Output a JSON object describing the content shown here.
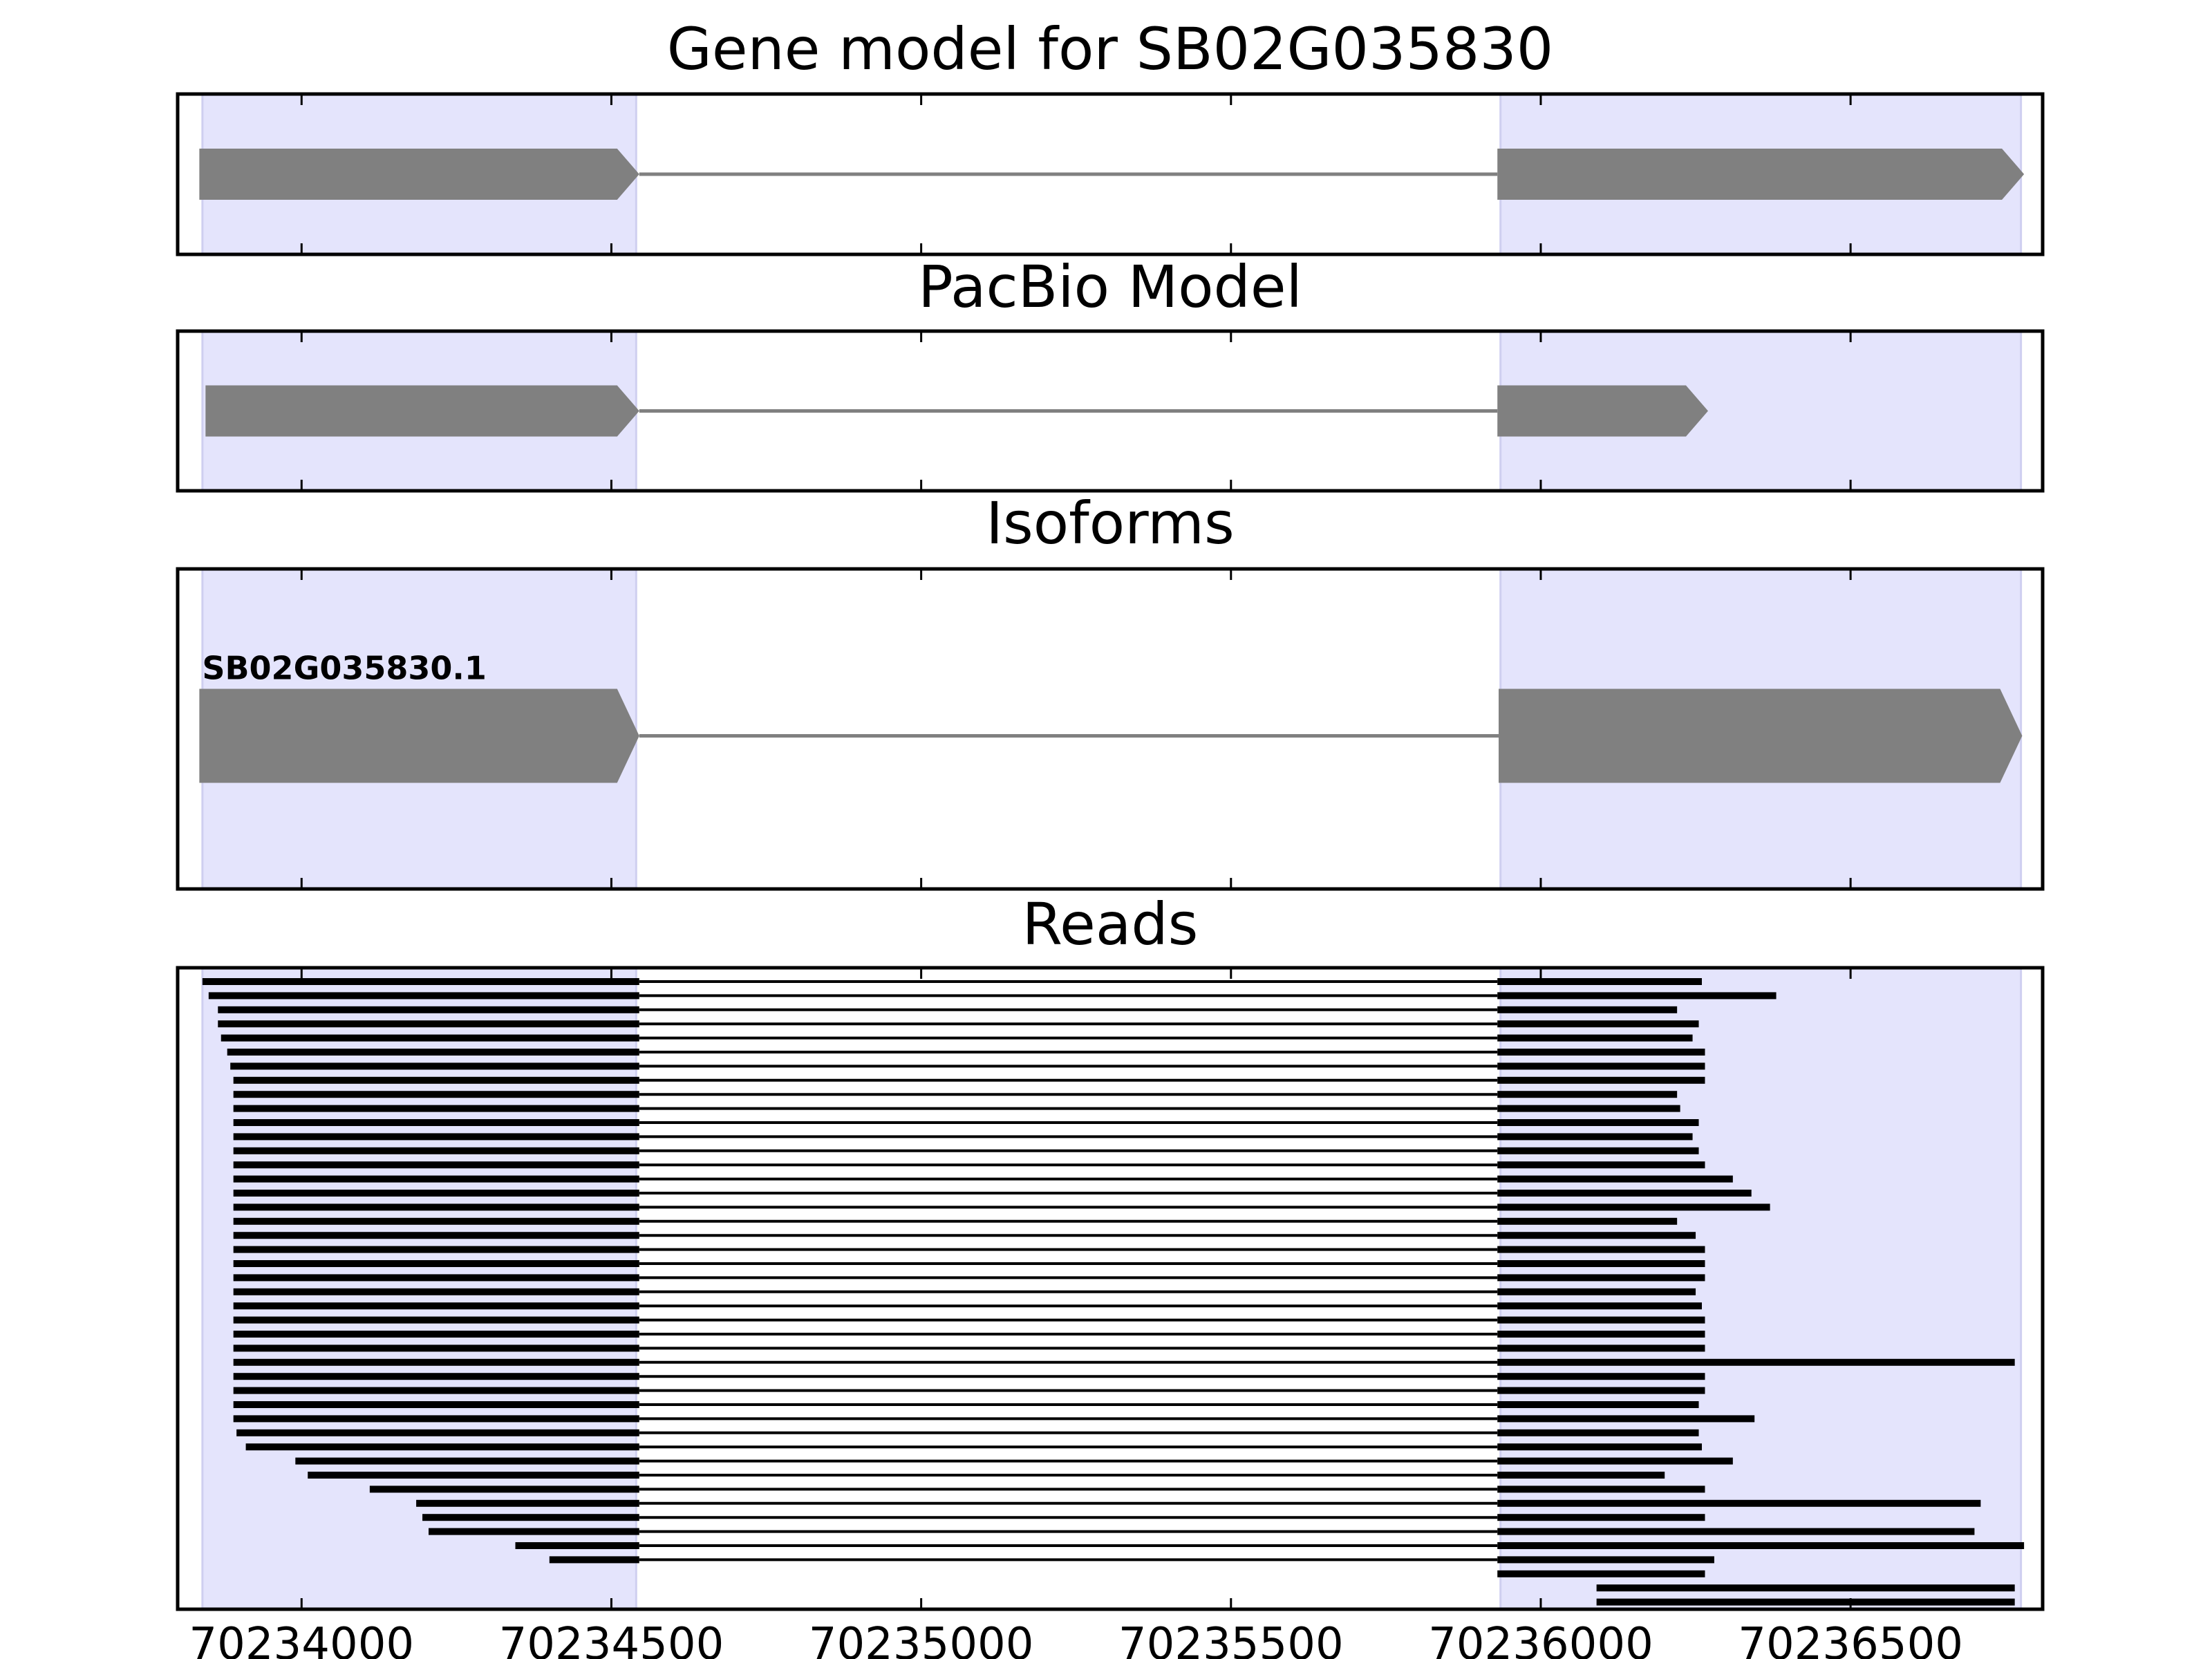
{
  "figure": {
    "x_ticks": [
      70234000,
      70234500,
      70235000,
      70235500,
      70236000,
      70236500
    ],
    "x_range": [
      70233800,
      70236810
    ],
    "highlight_regions": [
      [
        70233840,
        70234540
      ],
      [
        70235935,
        70236775
      ]
    ],
    "colors": {
      "highlight": "#e4e4fc",
      "feature": "#808080",
      "read": "#000000",
      "frame": "#000000"
    },
    "panels": [
      {
        "title": "Gene model for SB02G035830",
        "exons": [
          [
            70233835,
            70234545
          ],
          [
            70235930,
            70236780
          ]
        ],
        "intron": [
          70234545,
          70235930
        ]
      },
      {
        "title": "PacBio Model",
        "exons": [
          [
            70233845,
            70234545
          ],
          [
            70235930,
            70236270
          ]
        ],
        "intron": [
          70234545,
          70235930
        ]
      },
      {
        "title": "Isoforms",
        "isoform_label": "SB02G035830.1",
        "exons": [
          [
            70233835,
            70234545
          ],
          [
            70235932,
            70236777
          ]
        ],
        "intron": [
          70234545,
          70235932
        ]
      },
      {
        "title": "Reads",
        "reads": [
          [
            70233840,
            70236260
          ],
          [
            70233850,
            70236380
          ],
          [
            70233865,
            70236220
          ],
          [
            70233865,
            70236255
          ],
          [
            70233870,
            70236245
          ],
          [
            70233880,
            70236265
          ],
          [
            70233885,
            70236265
          ],
          [
            70233890,
            70236265
          ],
          [
            70233890,
            70236220
          ],
          [
            70233890,
            70236225
          ],
          [
            70233890,
            70236255
          ],
          [
            70233890,
            70236245
          ],
          [
            70233890,
            70236255
          ],
          [
            70233890,
            70236265
          ],
          [
            70233890,
            70236310
          ],
          [
            70233890,
            70236340
          ],
          [
            70233890,
            70236370
          ],
          [
            70233890,
            70236220
          ],
          [
            70233890,
            70236250
          ],
          [
            70233890,
            70236265
          ],
          [
            70233890,
            70236265
          ],
          [
            70233890,
            70236265
          ],
          [
            70233890,
            70236250
          ],
          [
            70233890,
            70236260
          ],
          [
            70233890,
            70236265
          ],
          [
            70233890,
            70236265
          ],
          [
            70233890,
            70236265
          ],
          [
            70233890,
            70236765
          ],
          [
            70233890,
            70236265
          ],
          [
            70233890,
            70236265
          ],
          [
            70233890,
            70236255
          ],
          [
            70233890,
            70236345
          ],
          [
            70233895,
            70236255
          ],
          [
            70233910,
            70236260
          ],
          [
            70233990,
            70236310
          ],
          [
            70234010,
            70236200
          ],
          [
            70234110,
            70236265
          ],
          [
            70234185,
            70236710
          ],
          [
            70234195,
            70236265
          ],
          [
            70234205,
            70236700
          ],
          [
            70234345,
            70236780
          ],
          [
            70234400,
            70236280
          ],
          [
            70235930,
            70236265
          ],
          [
            70236090,
            70236765
          ],
          [
            70236090,
            70236765
          ]
        ]
      }
    ]
  }
}
